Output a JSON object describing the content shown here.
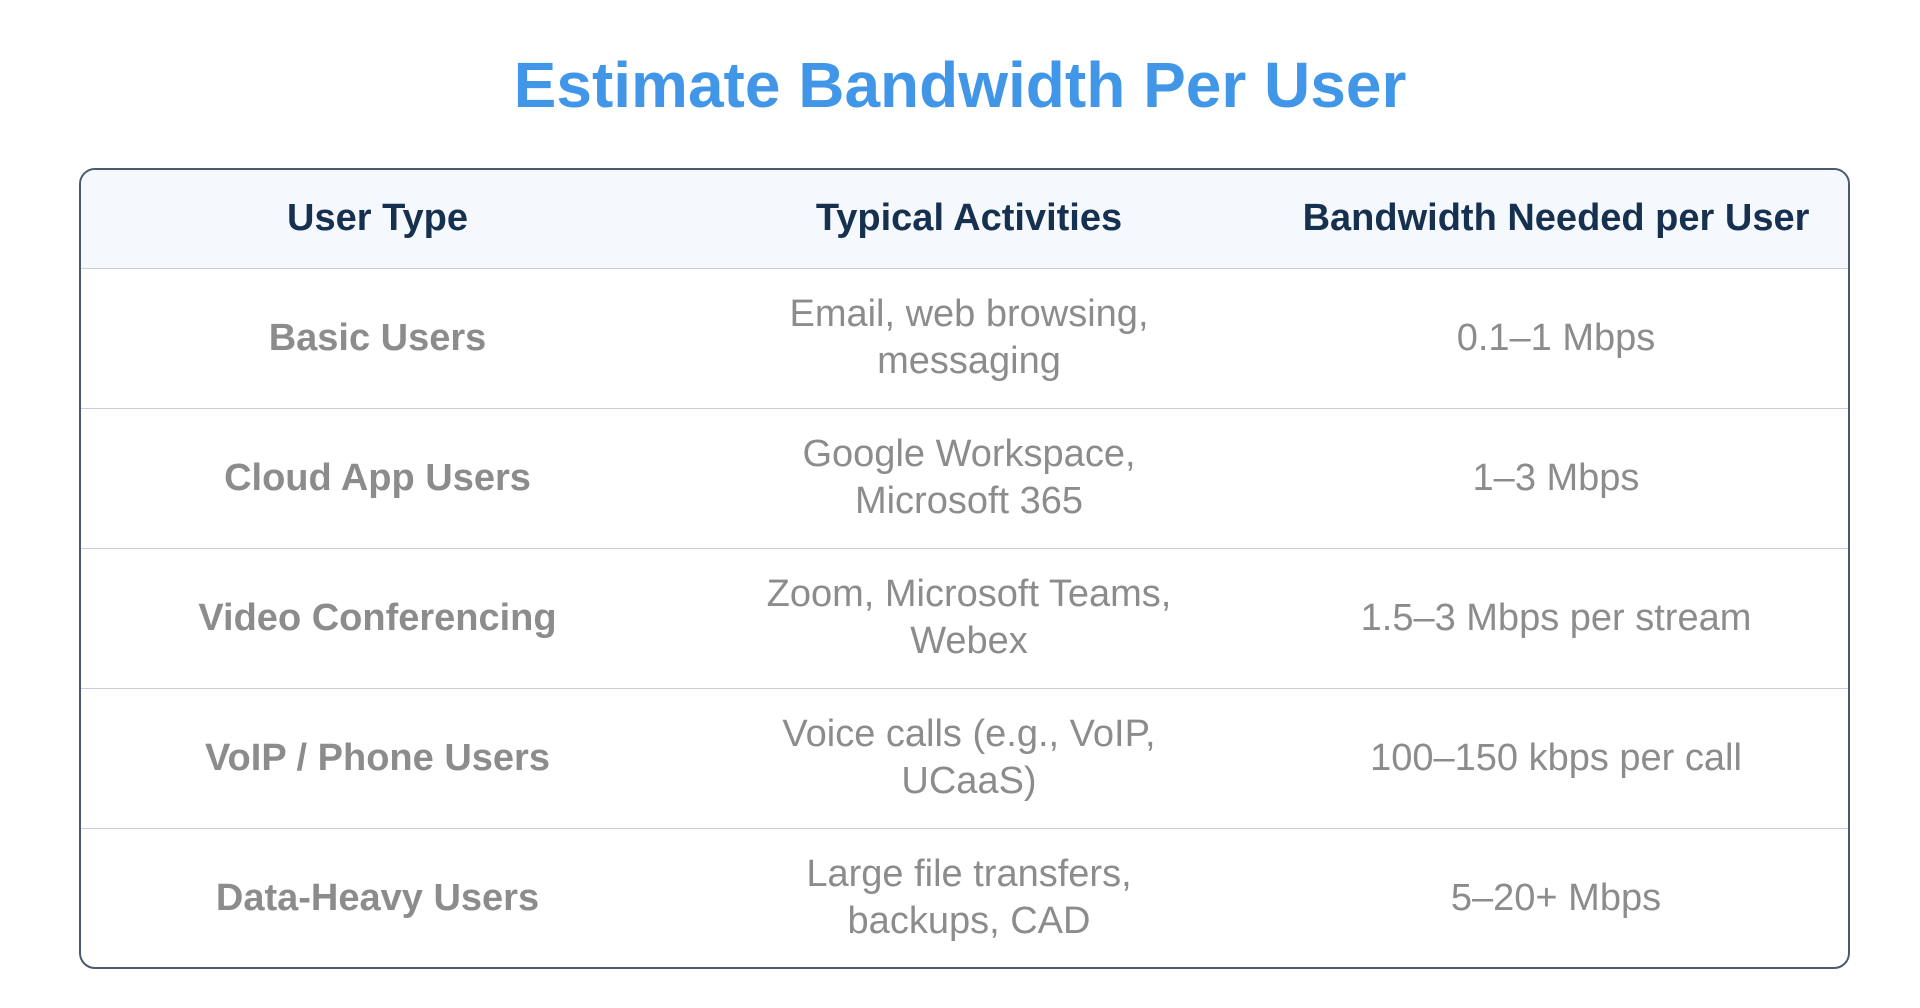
{
  "title": "Estimate Bandwidth Per User",
  "table": {
    "headers": [
      "User Type",
      "Typical Activities",
      "Bandwidth Needed per User"
    ],
    "rows": [
      {
        "type": "Basic Users",
        "activities": "Email, web browsing, messaging",
        "bandwidth": "0.1–1 Mbps"
      },
      {
        "type": "Cloud App Users",
        "activities": "Google Workspace, Microsoft 365",
        "bandwidth": "1–3 Mbps"
      },
      {
        "type": "Video Conferencing",
        "activities": "Zoom, Microsoft Teams, Webex",
        "bandwidth": "1.5–3 Mbps per stream"
      },
      {
        "type": "VoIP / Phone Users",
        "activities": "Voice calls (e.g., VoIP, UCaaS)",
        "bandwidth": "100–150 kbps per call"
      },
      {
        "type": "Data-Heavy Users",
        "activities": "Large file transfers, backups, CAD",
        "bandwidth": "5–20+ Mbps"
      }
    ]
  }
}
